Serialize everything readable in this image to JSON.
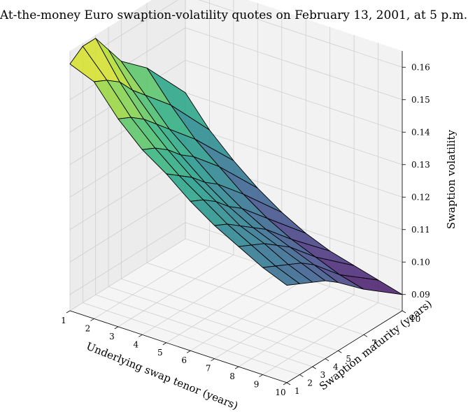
{
  "chart_data": {
    "type": "surface3d",
    "title": "At-the-money Euro swaption-volatility quotes on February 13, 2001, at 5 p.m.",
    "xlabel": "Underlying swap tenor (years)",
    "ylabel": "Swaption maturity (years)",
    "zlabel": "Swaption volatility",
    "x_ticks": [
      1,
      2,
      3,
      4,
      5,
      6,
      7,
      8,
      9,
      10
    ],
    "y_ticks": [
      1,
      2,
      3,
      4,
      5,
      7,
      10
    ],
    "z_ticks": [
      "0.09",
      "0.10",
      "0.11",
      "0.12",
      "0.13",
      "0.14",
      "0.15",
      "0.16"
    ],
    "zlim": [
      0.085,
      0.165
    ],
    "colormap": "viridis",
    "grid": true,
    "tenors": [
      1,
      2,
      3,
      4,
      5,
      6,
      7,
      8,
      9,
      10
    ],
    "maturities": [
      1,
      2,
      3,
      4,
      5,
      7,
      10
    ],
    "volatility": [
      [
        0.161,
        0.158,
        0.149,
        0.142,
        0.137,
        0.131,
        0.126,
        0.122,
        0.118,
        0.115
      ],
      [
        0.164,
        0.156,
        0.147,
        0.14,
        0.134,
        0.129,
        0.124,
        0.12,
        0.116,
        0.113
      ],
      [
        0.164,
        0.153,
        0.144,
        0.137,
        0.131,
        0.126,
        0.121,
        0.118,
        0.114,
        0.111
      ],
      [
        0.158,
        0.148,
        0.14,
        0.133,
        0.127,
        0.122,
        0.118,
        0.115,
        0.112,
        0.109
      ],
      [
        0.152,
        0.144,
        0.136,
        0.13,
        0.124,
        0.119,
        0.115,
        0.112,
        0.109,
        0.106
      ],
      [
        0.145,
        0.136,
        0.128,
        0.122,
        0.116,
        0.111,
        0.107,
        0.104,
        0.101,
        0.099
      ],
      [
        0.13,
        0.121,
        0.114,
        0.108,
        0.103,
        0.099,
        0.096,
        0.094,
        0.092,
        0.09
      ]
    ]
  }
}
